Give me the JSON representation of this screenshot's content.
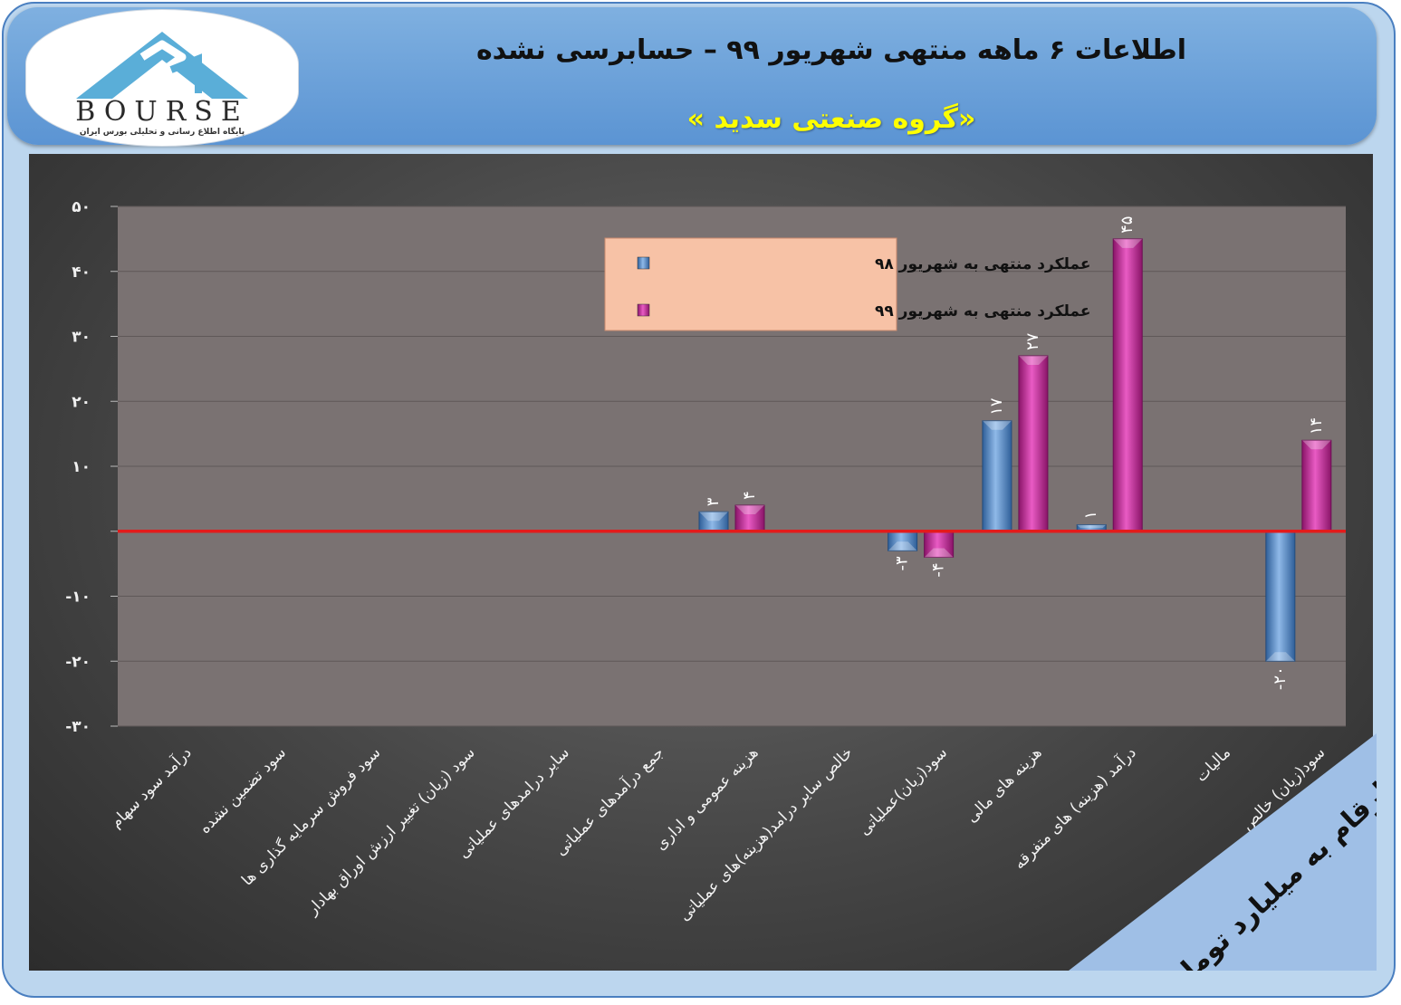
{
  "header": {
    "title": "اطلاعات ۶ ماهه منتهی شهریور ۹۹ – حسابرسی نشده",
    "subtitle": "«گروه صنعتی سدید »"
  },
  "logo": {
    "text": "BOURSE",
    "tagline": "پایگاه اطلاع رسانی و تحلیلی بورس ایران"
  },
  "units_badge": "ارقام به میلیارد تومان",
  "colors": {
    "series_98": "#5b8ec9",
    "series_99": "#c8299a",
    "zero_line": "#e31b1b",
    "plot_area": "#7a7272",
    "legend_bg": "#f7c2a6"
  },
  "chart_data": {
    "type": "bar",
    "categories": [
      "درآمد سود سهام",
      "سود تضمین نشده",
      "سود فروش سرمایه گذاری ها",
      "سود (زیان) تغییر ارزش اوراق بهادار",
      "سایر درامدهای عملیاتی",
      "جمع درآمدهای عملیاتی",
      "هزینه عمومی و اداری",
      "خالص سایر درامد(هزینه)های عملیاتی",
      "سود(زیان)عملیاتی",
      "هزینه های مالی",
      "درآمد (هزینه) های متفرقه",
      "مالیات",
      "سود(زیان) خالص"
    ],
    "series": [
      {
        "name": "عملکرد منتهی به شهریور ۹۸",
        "values": [
          0,
          0,
          0,
          0,
          0,
          0,
          3,
          0,
          -3,
          17,
          1,
          0,
          -20
        ],
        "labels": [
          "",
          "",
          "",
          "",
          "",
          "",
          "۳",
          "",
          "-۳",
          "۱۷",
          "۱",
          "",
          "-۲۰"
        ]
      },
      {
        "name": "عملکرد منتهی به شهریور ۹۹",
        "values": [
          0,
          0,
          0,
          0,
          0,
          0,
          4,
          0,
          -4,
          27,
          45,
          0,
          14
        ],
        "labels": [
          "",
          "",
          "",
          "",
          "",
          "",
          "۴",
          "",
          "-۴",
          "۲۷",
          "۴۵",
          "",
          "۱۴"
        ]
      }
    ],
    "y_ticks": [
      50,
      40,
      30,
      20,
      10,
      0,
      -10,
      -20,
      -30
    ],
    "y_tick_labels": [
      "۵۰",
      "۴۰",
      "۳۰",
      "۲۰",
      "۱۰",
      "",
      "-۱۰",
      "-۲۰",
      "-۳۰"
    ],
    "ylim": [
      -30,
      50
    ],
    "legend_position": "top-center",
    "grid": true
  }
}
